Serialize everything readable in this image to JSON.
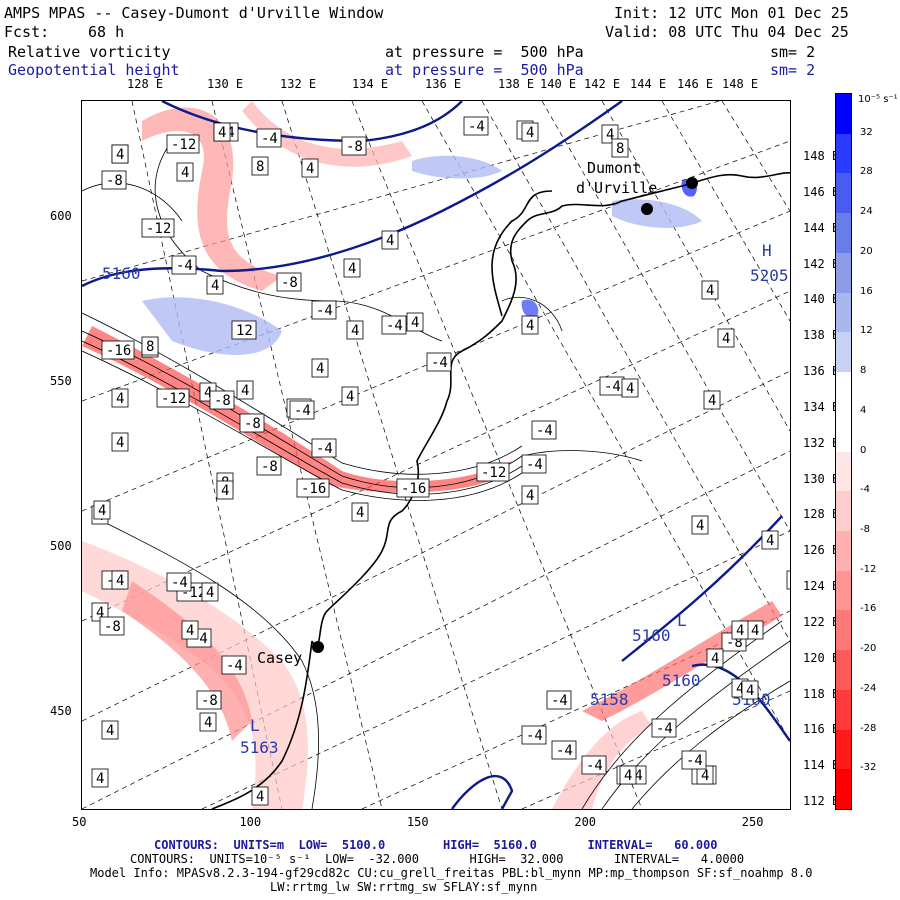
{
  "header": {
    "title": "AMPS MPAS -- Casey-Dumont d'Urville Window",
    "init": "Init: 12 UTC Mon 01 Dec 25",
    "forecast_label": "Fcst:",
    "forecast_value": "68 h",
    "valid": "Valid: 08 UTC Thu 04 Dec 25",
    "field1_name": "Relative vorticity",
    "field1_level": "at pressure =  500 hPa",
    "field1_sm": "sm= 2",
    "field2_name": "Geopotential height",
    "field2_level": "at pressure =  500 hPa",
    "field2_sm": "sm= 2"
  },
  "lon_labels_top": [
    "128 E",
    "130 E",
    "132 E",
    "134 E",
    "136 E",
    "138 E",
    "140 E",
    "142 E",
    "144 E",
    "146 E",
    "148 E"
  ],
  "lon_labels_right": [
    "148 E",
    "146 E",
    "144 E",
    "142 E",
    "140 E",
    "138 E",
    "136 E",
    "134 E",
    "132 E",
    "130 E",
    "128 E",
    "126 E",
    "124 E",
    "122 E",
    "120 E",
    "118 E",
    "116 E",
    "114 E",
    "112 E"
  ],
  "x_axis": {
    "min": 50,
    "max": 262,
    "ticks": [
      "50",
      "100",
      "150",
      "200",
      "250"
    ]
  },
  "y_axis": {
    "min": 420,
    "max": 635,
    "ticks": [
      "600",
      "550",
      "500",
      "450"
    ]
  },
  "places": {
    "dumont_line1": "Dumont",
    "dumont_line2": "d'Urville",
    "casey": "Casey"
  },
  "map_labels": {
    "height_5160_a": "5160",
    "height_5160_b": "5160",
    "height_5160_c": "5160",
    "height_5160_d": "5160",
    "height_5158": "5158",
    "height_5163": "5163",
    "height_5205": "5205",
    "low_L1": "L",
    "low_L2": "L",
    "high_H": "H"
  },
  "vort_boxes": [
    "-4",
    "4",
    "-8",
    "-4",
    "-12",
    "-8",
    "4",
    "8",
    "4",
    "-4",
    "4",
    "4",
    "8",
    "-12",
    "4",
    "4",
    "-4",
    "4",
    "-8",
    "-4",
    "4",
    "-4",
    "4",
    "-4",
    "4",
    "12",
    "8",
    "4",
    "4",
    "-16",
    "8",
    "4",
    "-4",
    "-8",
    "4",
    "4",
    "-12",
    "-8",
    "4",
    "-4",
    "-4",
    "-8",
    "8",
    "4",
    "-8",
    "4",
    "-12",
    "4",
    "-12",
    "-4",
    "4",
    "4",
    "-16",
    "-16",
    "4",
    "4",
    "4",
    "4",
    "4",
    "4",
    "-8",
    "-4",
    "4",
    "-4",
    "4",
    "-4",
    "-8",
    "4",
    "-8",
    "4",
    "-4",
    "-4",
    "-4",
    "-4",
    "-4",
    "4",
    "4",
    "-4",
    "4",
    "-4",
    "4",
    "4",
    "-4",
    "4",
    "4",
    "-4",
    "4",
    "4",
    "-4",
    "4",
    "4",
    "4",
    "4",
    "4",
    "4",
    "4"
  ],
  "colorbar": {
    "unit_label": "10⁻⁵ s⁻¹",
    "levels": [
      "32",
      "28",
      "24",
      "20",
      "16",
      "12",
      "8",
      "4",
      "0",
      "-4",
      "-8",
      "-12",
      "-16",
      "-20",
      "-24",
      "-28",
      "-32"
    ],
    "colors": [
      "#0000ff",
      "#2a3aff",
      "#4a5cf0",
      "#6a7ce8",
      "#8c9ce8",
      "#aab6ee",
      "#c8d0f4",
      "#ffffff",
      "#ffffff",
      "#ffe6e6",
      "#ffcccc",
      "#ffb0b0",
      "#ff9494",
      "#ff7878",
      "#ff5a5a",
      "#ff3a3a",
      "#ff1a1a",
      "#ff0000"
    ]
  },
  "footer": {
    "line1": "CONTOURS:  UNITS=m  LOW=  5100.0        HIGH=  5160.0       INTERVAL=   60.000",
    "line2": "CONTOURS:  UNITS=10⁻⁵ s⁻¹  LOW=  -32.000       HIGH=  32.000       INTERVAL=   4.0000",
    "line3": "Model Info: MPASv8.2.3-194-gf29cd82c CU:cu_grell_freitas PBL:bl_mynn MP:mp_thompson SF:sf_noahmp 8.0",
    "line4": "LW:rrtmg_lw SW:rrtmg_sw SFLAY:sf_mynn"
  }
}
